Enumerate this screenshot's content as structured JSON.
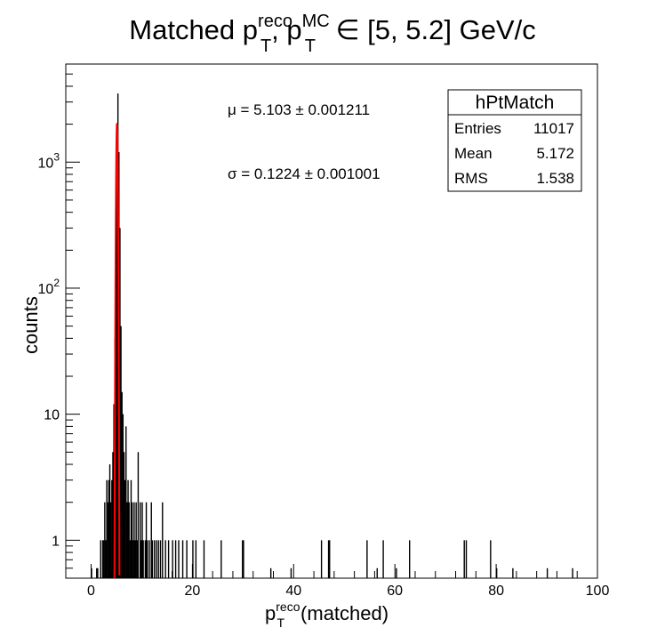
{
  "chart_data": {
    "type": "histogram",
    "title": {
      "prefix": "Matched p",
      "sup1": "reco",
      "sub1": "T",
      "mid": ", p",
      "sup2": "MC",
      "sub2": "T",
      "suffix": " ∈ [5, 5.2] GeV/c"
    },
    "xlabel": {
      "base": "p",
      "sup": "reco",
      "sub": "T",
      "rest": "(matched)"
    },
    "ylabel": "counts",
    "x_range": [
      -5,
      100
    ],
    "y_range": [
      0.5,
      6000
    ],
    "y_scale": "log",
    "x_ticks": [
      0,
      20,
      40,
      60,
      80,
      100
    ],
    "x_tick_labels": [
      "0",
      "20",
      "40",
      "60",
      "80",
      "100"
    ],
    "y_ticks": [
      {
        "value": 1,
        "base": "1",
        "exp": ""
      },
      {
        "value": 10,
        "base": "10",
        "exp": ""
      },
      {
        "value": 100,
        "base": "10",
        "exp": "2"
      },
      {
        "value": 1000,
        "base": "10",
        "exp": "3"
      }
    ],
    "bin_width": 0.2,
    "histogram": [
      [
        0.0,
        0.6
      ],
      [
        1.0,
        0.6
      ],
      [
        1.2,
        0.6
      ],
      [
        1.8,
        1
      ],
      [
        2.2,
        1
      ],
      [
        2.4,
        1
      ],
      [
        2.6,
        2
      ],
      [
        2.8,
        1
      ],
      [
        3.0,
        3
      ],
      [
        3.2,
        2
      ],
      [
        3.4,
        3
      ],
      [
        3.6,
        4
      ],
      [
        3.8,
        2
      ],
      [
        4.0,
        3
      ],
      [
        4.2,
        5
      ],
      [
        4.4,
        12
      ],
      [
        4.6,
        40
      ],
      [
        4.8,
        400
      ],
      [
        5.0,
        900
      ],
      [
        5.2,
        3500
      ],
      [
        5.4,
        1200
      ],
      [
        5.6,
        300
      ],
      [
        5.8,
        50
      ],
      [
        6.0,
        15
      ],
      [
        6.2,
        10
      ],
      [
        6.4,
        5
      ],
      [
        6.6,
        3
      ],
      [
        6.8,
        8
      ],
      [
        7.0,
        2
      ],
      [
        7.2,
        3
      ],
      [
        7.4,
        2
      ],
      [
        7.6,
        1
      ],
      [
        7.8,
        3
      ],
      [
        8.0,
        2
      ],
      [
        8.2,
        1
      ],
      [
        8.4,
        2
      ],
      [
        8.6,
        1
      ],
      [
        8.8,
        2
      ],
      [
        9.0,
        1
      ],
      [
        9.2,
        5
      ],
      [
        9.6,
        2
      ],
      [
        9.8,
        1
      ],
      [
        10.0,
        2
      ],
      [
        10.2,
        1
      ],
      [
        10.6,
        1
      ],
      [
        10.8,
        2
      ],
      [
        11.0,
        1
      ],
      [
        11.4,
        1
      ],
      [
        11.8,
        2
      ],
      [
        12.0,
        1
      ],
      [
        12.4,
        1
      ],
      [
        12.8,
        1
      ],
      [
        13.2,
        1
      ],
      [
        13.6,
        1
      ],
      [
        14.0,
        2
      ],
      [
        14.6,
        1
      ],
      [
        15.2,
        1
      ],
      [
        16.0,
        1
      ],
      [
        16.6,
        1
      ],
      [
        17.2,
        1
      ],
      [
        18.0,
        1
      ],
      [
        18.8,
        1
      ],
      [
        20.0,
        1
      ],
      [
        20.6,
        1
      ],
      [
        22.2,
        1
      ],
      [
        25.6,
        1
      ],
      [
        29.8,
        1
      ],
      [
        30.0,
        1
      ],
      [
        35.4,
        0.6
      ],
      [
        39.4,
        0.6
      ],
      [
        45.4,
        1
      ],
      [
        46.8,
        1
      ],
      [
        47.0,
        1
      ],
      [
        54.4,
        1
      ],
      [
        56.4,
        0.6
      ],
      [
        57.6,
        1
      ],
      [
        60.2,
        0.6
      ],
      [
        62.8,
        1
      ],
      [
        73.6,
        1
      ],
      [
        74.0,
        1
      ],
      [
        78.8,
        1
      ],
      [
        80.0,
        0.6
      ],
      [
        83.2,
        0.6
      ],
      [
        90.0,
        0.6
      ],
      [
        95.0,
        0.6
      ]
    ],
    "fit": {
      "type": "gaussian",
      "amplitude": 2000,
      "mu": 5.103,
      "sigma": 0.1224,
      "range": [
        4.6,
        5.6
      ],
      "color": "#ff0000"
    },
    "annotations": {
      "mu_text": "μ = 5.103 ± 0.001211",
      "sigma_text": "σ = 0.1224 ± 0.001001"
    },
    "stats_box": {
      "title": "hPtMatch",
      "rows": [
        {
          "label": "Entries",
          "value": "11017"
        },
        {
          "label": "Mean",
          "value": "5.172"
        },
        {
          "label": "RMS",
          "value": "1.538"
        }
      ],
      "position": "top-right"
    },
    "colors": {
      "histogram": "#000000",
      "fit": "#ff0000",
      "frame": "#000000"
    }
  }
}
